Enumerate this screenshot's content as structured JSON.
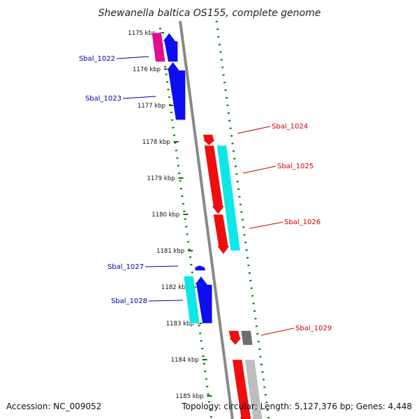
{
  "title": "Shewanella baltica OS155, complete genome",
  "footer": {
    "accession": "Accession: NC_009052",
    "summary": "Topology: circular; Length: 5,127,376 bp; Genes: 4,448"
  },
  "colors": {
    "forward": "#0000ee",
    "reverse": "#ee0000",
    "cyan": "#00e6e6",
    "magenta": "#e0008a",
    "gray": "#666666",
    "lightgray": "#bbbbbb",
    "axis": "#888888",
    "tick": "#007700"
  },
  "scale": {
    "labels": [
      "1175 kbp",
      "1176 kbp",
      "1177 kbp",
      "1178 kbp",
      "1179 kbp",
      "1180 kbp",
      "1181 kbp",
      "1182 kbp",
      "1183 kbp",
      "1184 kbp",
      "1185 kbp"
    ]
  },
  "gene_labels": [
    {
      "text": "Sbal_1022",
      "side": "left",
      "color": "#0000aa"
    },
    {
      "text": "Sbal_1023",
      "side": "left",
      "color": "#0000aa"
    },
    {
      "text": "Sbal_1024",
      "side": "right",
      "color": "#cc0000"
    },
    {
      "text": "Sbal_1025",
      "side": "right",
      "color": "#cc0000"
    },
    {
      "text": "Sbal_1026",
      "side": "right",
      "color": "#cc0000"
    },
    {
      "text": "Sbal_1027",
      "side": "left",
      "color": "#0000aa"
    },
    {
      "text": "Sbal_1028",
      "side": "left",
      "color": "#0000aa"
    },
    {
      "text": "Sbal_1029",
      "side": "right",
      "color": "#cc0000"
    }
  ],
  "features": [
    {
      "name": "Sbal_1022-magenta",
      "kbp": [
        1175.0,
        1175.8
      ],
      "lane": -2,
      "color": "magenta",
      "dir": "none"
    },
    {
      "name": "Sbal_1022",
      "kbp": [
        1175.0,
        1175.8
      ],
      "lane": -1,
      "color": "forward",
      "dir": "up"
    },
    {
      "name": "Sbal_1023",
      "kbp": [
        1175.8,
        1177.4
      ],
      "lane": -1,
      "color": "forward",
      "dir": "up"
    },
    {
      "name": "Sbal_1024",
      "kbp": [
        1177.8,
        1178.1
      ],
      "lane": 1,
      "color": "reverse",
      "dir": "down"
    },
    {
      "name": "Sbal_1025-cyan",
      "kbp": [
        1178.1,
        1181.0
      ],
      "lane": 2,
      "color": "cyan",
      "dir": "none"
    },
    {
      "name": "Sbal_1025",
      "kbp": [
        1178.1,
        1180.0
      ],
      "lane": 1,
      "color": "reverse",
      "dir": "down"
    },
    {
      "name": "Sbal_1026",
      "kbp": [
        1180.0,
        1181.1
      ],
      "lane": 1,
      "color": "reverse",
      "dir": "down"
    },
    {
      "name": "Sbal_1027",
      "kbp": [
        1181.4,
        1181.55
      ],
      "lane": -1,
      "color": "forward",
      "dir": "up"
    },
    {
      "name": "Sbal_1028-cyan",
      "kbp": [
        1181.7,
        1183.0
      ],
      "lane": -2,
      "color": "cyan",
      "dir": "none"
    },
    {
      "name": "Sbal_1028",
      "kbp": [
        1181.7,
        1183.0
      ],
      "lane": -1,
      "color": "forward",
      "dir": "up"
    },
    {
      "name": "Sbal_1029",
      "kbp": [
        1183.2,
        1183.6
      ],
      "lane": 1,
      "color": "reverse",
      "dir": "down"
    },
    {
      "name": "Sbal_1029-gray",
      "kbp": [
        1183.2,
        1183.6
      ],
      "lane": 2,
      "color": "gray",
      "dir": "none"
    },
    {
      "name": "lower-red",
      "kbp": [
        1184.0,
        1185.8
      ],
      "lane": 1,
      "color": "reverse",
      "dir": "down"
    },
    {
      "name": "lower-lightgray",
      "kbp": [
        1184.0,
        1185.8
      ],
      "lane": 2,
      "color": "lightgray",
      "dir": "none"
    }
  ]
}
